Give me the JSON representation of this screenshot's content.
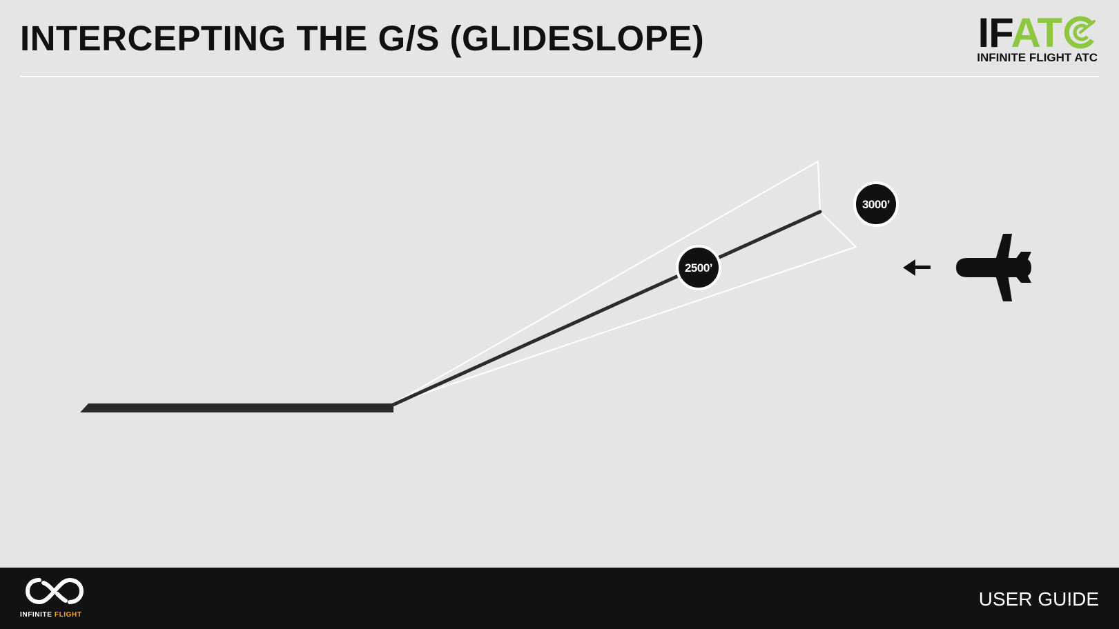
{
  "header": {
    "title": "INTERCEPTING THE G/S (GLIDESLOPE)"
  },
  "brand": {
    "mark_part1": "IF",
    "mark_part2": "AT",
    "subtitle": "INFINITE FLIGHT ATC",
    "accent_color": "#8dc63f"
  },
  "diagram": {
    "markers": [
      {
        "label": "2500’"
      },
      {
        "label": "3000’"
      }
    ],
    "icons": {
      "arrow": "arrow-left-icon",
      "aircraft": "airplane-icon"
    }
  },
  "footer": {
    "logo_word1": "INFINITE",
    "logo_word2": "FLIGHT",
    "logo_accent": "#f7a81b",
    "right_label": "USER GUIDE"
  }
}
